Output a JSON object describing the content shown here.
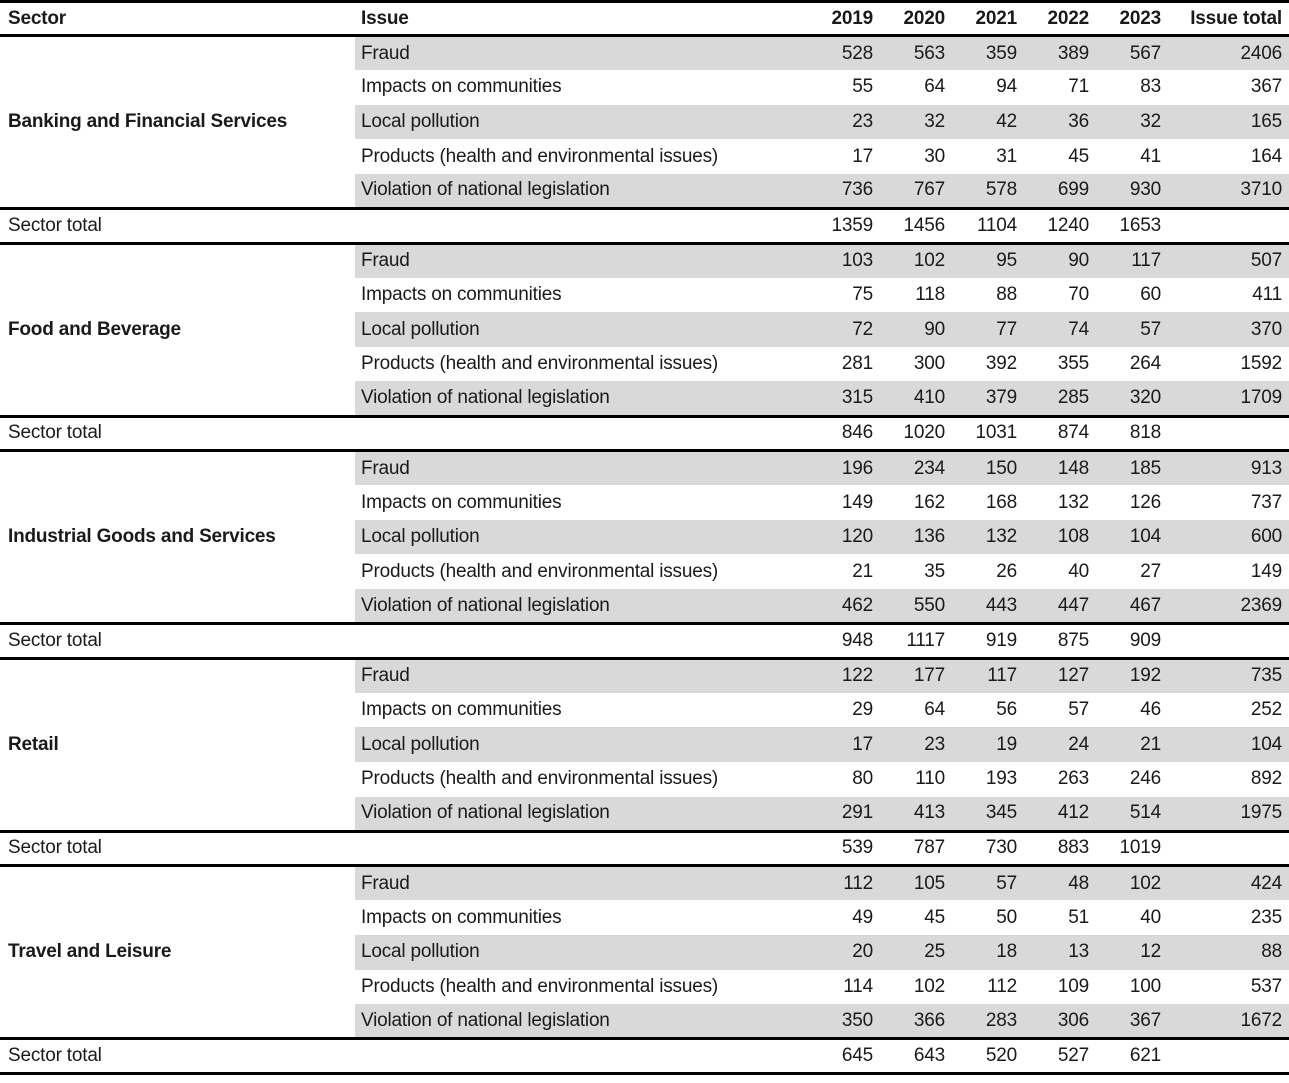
{
  "table": {
    "columns": [
      "Sector",
      "Issue",
      "2019",
      "2020",
      "2021",
      "2022",
      "2023",
      "Issue total"
    ],
    "sector_total_label": "Sector total",
    "colors": {
      "row_shade": "#d9d9d9",
      "border": "#000000",
      "text": "#1a1a1a"
    },
    "sectors": [
      {
        "name": "Banking and Financial Services",
        "rows": [
          {
            "issue": "Fraud",
            "values": [
              528,
              563,
              359,
              389,
              567
            ],
            "issue_total": 2406
          },
          {
            "issue": "Impacts on communities",
            "values": [
              55,
              64,
              94,
              71,
              83
            ],
            "issue_total": 367
          },
          {
            "issue": "Local pollution",
            "values": [
              23,
              32,
              42,
              36,
              32
            ],
            "issue_total": 165
          },
          {
            "issue": "Products (health and environmental issues)",
            "values": [
              17,
              30,
              31,
              45,
              41
            ],
            "issue_total": 164
          },
          {
            "issue": "Violation of national legislation",
            "values": [
              736,
              767,
              578,
              699,
              930
            ],
            "issue_total": 3710
          }
        ],
        "sector_total": [
          1359,
          1456,
          1104,
          1240,
          1653
        ]
      },
      {
        "name": "Food and Beverage",
        "rows": [
          {
            "issue": "Fraud",
            "values": [
              103,
              102,
              95,
              90,
              117
            ],
            "issue_total": 507
          },
          {
            "issue": "Impacts on communities",
            "values": [
              75,
              118,
              88,
              70,
              60
            ],
            "issue_total": 411
          },
          {
            "issue": "Local pollution",
            "values": [
              72,
              90,
              77,
              74,
              57
            ],
            "issue_total": 370
          },
          {
            "issue": "Products (health and environmental issues)",
            "values": [
              281,
              300,
              392,
              355,
              264
            ],
            "issue_total": 1592
          },
          {
            "issue": "Violation of national legislation",
            "values": [
              315,
              410,
              379,
              285,
              320
            ],
            "issue_total": 1709
          }
        ],
        "sector_total": [
          846,
          1020,
          1031,
          874,
          818
        ]
      },
      {
        "name": "Industrial Goods and Services",
        "rows": [
          {
            "issue": "Fraud",
            "values": [
              196,
              234,
              150,
              148,
              185
            ],
            "issue_total": 913
          },
          {
            "issue": "Impacts on communities",
            "values": [
              149,
              162,
              168,
              132,
              126
            ],
            "issue_total": 737
          },
          {
            "issue": "Local pollution",
            "values": [
              120,
              136,
              132,
              108,
              104
            ],
            "issue_total": 600
          },
          {
            "issue": "Products (health and environmental issues)",
            "values": [
              21,
              35,
              26,
              40,
              27
            ],
            "issue_total": 149
          },
          {
            "issue": "Violation of national legislation",
            "values": [
              462,
              550,
              443,
              447,
              467
            ],
            "issue_total": 2369
          }
        ],
        "sector_total": [
          948,
          1117,
          919,
          875,
          909
        ]
      },
      {
        "name": "Retail",
        "rows": [
          {
            "issue": "Fraud",
            "values": [
              122,
              177,
              117,
              127,
              192
            ],
            "issue_total": 735
          },
          {
            "issue": "Impacts on communities",
            "values": [
              29,
              64,
              56,
              57,
              46
            ],
            "issue_total": 252
          },
          {
            "issue": "Local pollution",
            "values": [
              17,
              23,
              19,
              24,
              21
            ],
            "issue_total": 104
          },
          {
            "issue": "Products (health and environmental issues)",
            "values": [
              80,
              110,
              193,
              263,
              246
            ],
            "issue_total": 892
          },
          {
            "issue": "Violation of national legislation",
            "values": [
              291,
              413,
              345,
              412,
              514
            ],
            "issue_total": 1975
          }
        ],
        "sector_total": [
          539,
          787,
          730,
          883,
          1019
        ]
      },
      {
        "name": "Travel and Leisure",
        "rows": [
          {
            "issue": "Fraud",
            "values": [
              112,
              105,
              57,
              48,
              102
            ],
            "issue_total": 424
          },
          {
            "issue": "Impacts on communities",
            "values": [
              49,
              45,
              50,
              51,
              40
            ],
            "issue_total": 235
          },
          {
            "issue": "Local pollution",
            "values": [
              20,
              25,
              18,
              13,
              12
            ],
            "issue_total": 88
          },
          {
            "issue": "Products (health and environmental issues)",
            "values": [
              114,
              102,
              112,
              109,
              100
            ],
            "issue_total": 537
          },
          {
            "issue": "Violation of national legislation",
            "values": [
              350,
              366,
              283,
              306,
              367
            ],
            "issue_total": 1672
          }
        ],
        "sector_total": [
          645,
          643,
          520,
          527,
          621
        ]
      }
    ]
  }
}
